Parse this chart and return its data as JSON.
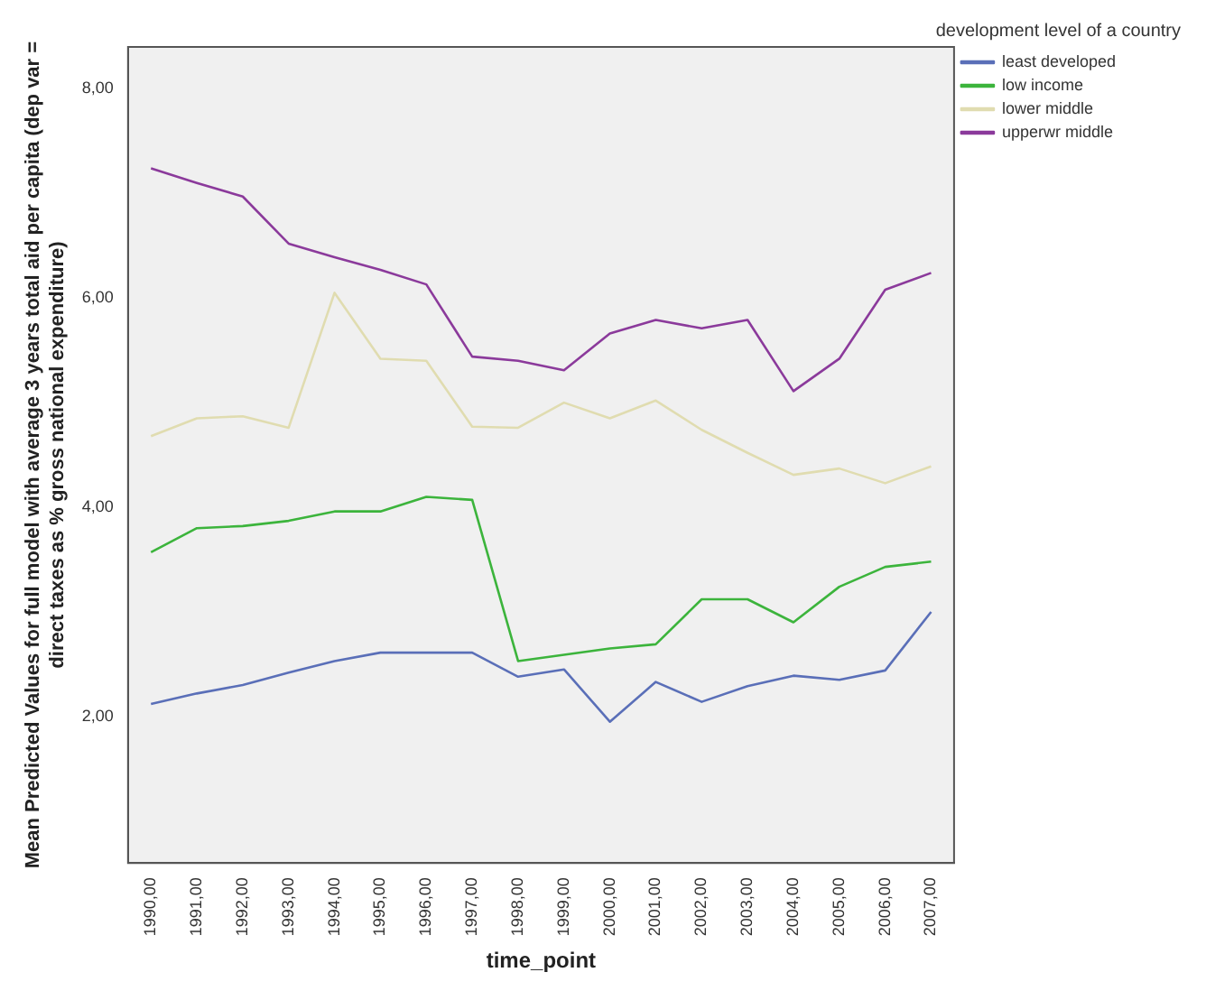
{
  "chart_data": {
    "type": "line",
    "xlabel": "time_point",
    "ylabel": "Mean Predicted Values for full model with average 3 years total aid per capita (dep var = direct taxes as % gross national expenditure)",
    "legend_title": "development level of a country",
    "categories": [
      "1990,00",
      "1991,00",
      "1992,00",
      "1993,00",
      "1994,00",
      "1995,00",
      "1996,00",
      "1997,00",
      "1998,00",
      "1999,00",
      "2000,00",
      "2001,00",
      "2002,00",
      "2003,00",
      "2004,00",
      "2005,00",
      "2006,00",
      "2007,00"
    ],
    "series": [
      {
        "name": "least developed",
        "color": "#5a6fb8",
        "values": [
          2.12,
          2.22,
          2.3,
          2.42,
          2.53,
          2.61,
          2.61,
          2.61,
          2.38,
          2.45,
          1.95,
          2.33,
          2.14,
          2.29,
          2.39,
          2.35,
          2.44,
          3.0
        ]
      },
      {
        "name": "low income",
        "color": "#3cb43c",
        "values": [
          3.57,
          3.8,
          3.82,
          3.87,
          3.96,
          3.96,
          4.1,
          4.07,
          2.53,
          2.59,
          2.65,
          2.69,
          3.12,
          3.12,
          2.9,
          3.24,
          3.43,
          3.48
        ]
      },
      {
        "name": "lower middle",
        "color": "#e0dcb0",
        "values": [
          4.68,
          4.85,
          4.87,
          4.76,
          6.05,
          5.42,
          5.4,
          4.77,
          4.76,
          5.0,
          4.85,
          5.02,
          4.74,
          4.52,
          4.31,
          4.37,
          4.23,
          4.39
        ]
      },
      {
        "name": "upperwr middle",
        "color": "#8b3a9b",
        "values": [
          7.24,
          7.1,
          6.97,
          6.52,
          6.39,
          6.27,
          6.13,
          5.44,
          5.4,
          5.31,
          5.66,
          5.79,
          5.71,
          5.79,
          5.11,
          5.42,
          6.08,
          6.24
        ]
      }
    ],
    "ylim": [
      0.6,
      8.4
    ],
    "yticks": [
      {
        "value": 2,
        "label": "2,00"
      },
      {
        "value": 4,
        "label": "4,00"
      },
      {
        "value": 6,
        "label": "6,00"
      },
      {
        "value": 8,
        "label": "8,00"
      }
    ],
    "grid": false,
    "legend": "top right",
    "marker": "none",
    "line_style": "solid"
  }
}
